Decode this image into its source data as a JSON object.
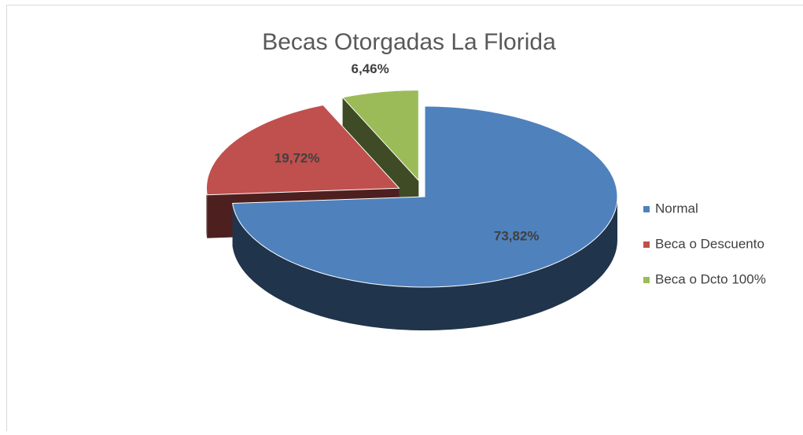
{
  "chart_data": {
    "type": "pie",
    "title": "Becas Otorgadas La Florida",
    "categories": [
      "Normal",
      "Beca o Descuento",
      "Beca o Dcto 100%"
    ],
    "values": [
      73.82,
      19.72,
      6.46
    ],
    "value_labels": [
      "73,82%",
      "19,72%",
      "6,46%"
    ],
    "colors": [
      "#4f81bd",
      "#c0504d",
      "#9bbb59"
    ],
    "legend": "right"
  }
}
